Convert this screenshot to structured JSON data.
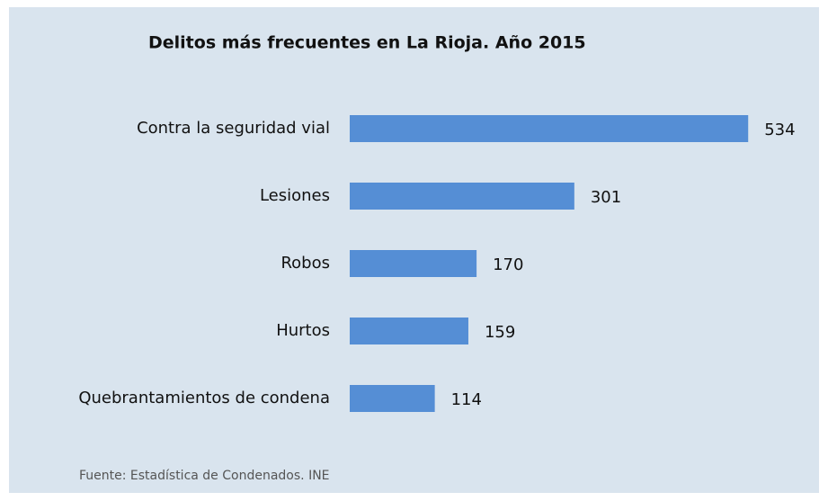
{
  "chart_data": {
    "type": "bar",
    "orientation": "horizontal",
    "title": "Delitos más frecuentes en La Rioja. Año 2015",
    "categories": [
      "Contra la seguridad vial",
      "Lesiones",
      "Robos",
      "Hurtos",
      "Quebrantamientos de condena"
    ],
    "values": [
      534,
      301,
      170,
      159,
      114
    ],
    "color": "#558ed5",
    "source": "Fuente: Estadística de Condenados. INE"
  }
}
